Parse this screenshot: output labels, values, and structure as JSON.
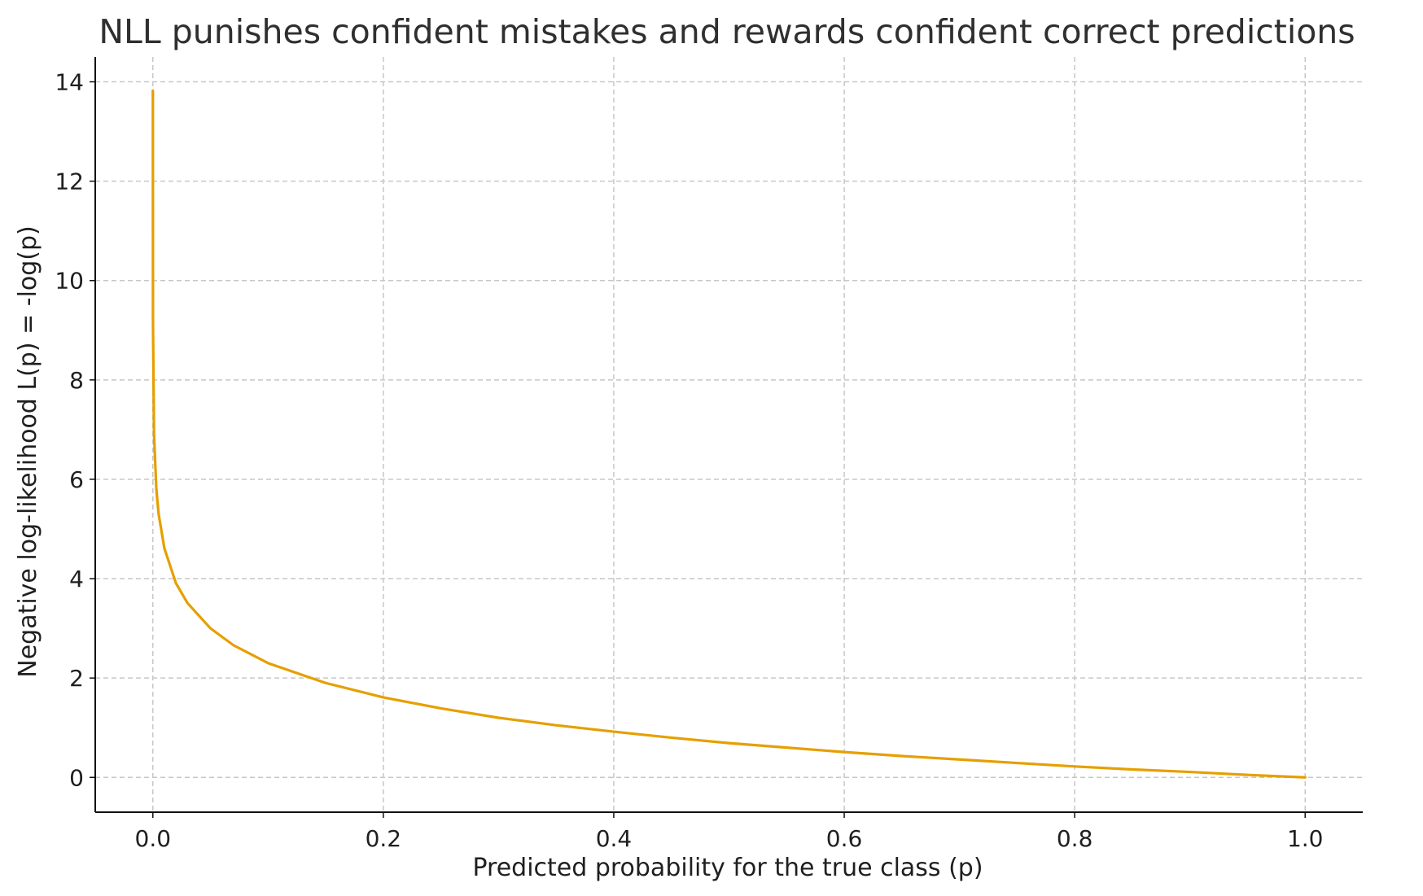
{
  "chart_data": {
    "type": "line",
    "title": "NLL punishes confident mistakes and rewards confident correct predictions",
    "xlabel": "Predicted probability for the true class (p)",
    "ylabel": "Negative log-likelihood  L(p) = -log(p)",
    "xlim": [
      -0.05,
      1.05
    ],
    "ylim": [
      -0.7,
      14.5
    ],
    "x_ticks": [
      0.0,
      0.2,
      0.4,
      0.6,
      0.8,
      1.0
    ],
    "x_tick_labels": [
      "0.0",
      "0.2",
      "0.4",
      "0.6",
      "0.8",
      "1.0"
    ],
    "y_ticks": [
      0,
      2,
      4,
      6,
      8,
      10,
      12,
      14
    ],
    "y_tick_labels": [
      "0",
      "2",
      "4",
      "6",
      "8",
      "10",
      "12",
      "14"
    ],
    "grid": true,
    "series": [
      {
        "color": "#E69F00",
        "x": [
          1e-06,
          0.0001,
          0.001,
          0.003,
          0.005,
          0.01,
          0.02,
          0.03,
          0.05,
          0.07,
          0.1,
          0.15,
          0.2,
          0.25,
          0.3,
          0.35,
          0.4,
          0.45,
          0.5,
          0.55,
          0.6,
          0.65,
          0.7,
          0.75,
          0.8,
          0.85,
          0.9,
          0.95,
          1.0
        ],
        "y": [
          13.82,
          9.21,
          6.91,
          5.81,
          5.3,
          4.61,
          3.91,
          3.51,
          3.0,
          2.66,
          2.3,
          1.9,
          1.61,
          1.39,
          1.2,
          1.05,
          0.92,
          0.8,
          0.69,
          0.6,
          0.51,
          0.43,
          0.36,
          0.29,
          0.22,
          0.16,
          0.11,
          0.05,
          0.0
        ]
      }
    ]
  }
}
